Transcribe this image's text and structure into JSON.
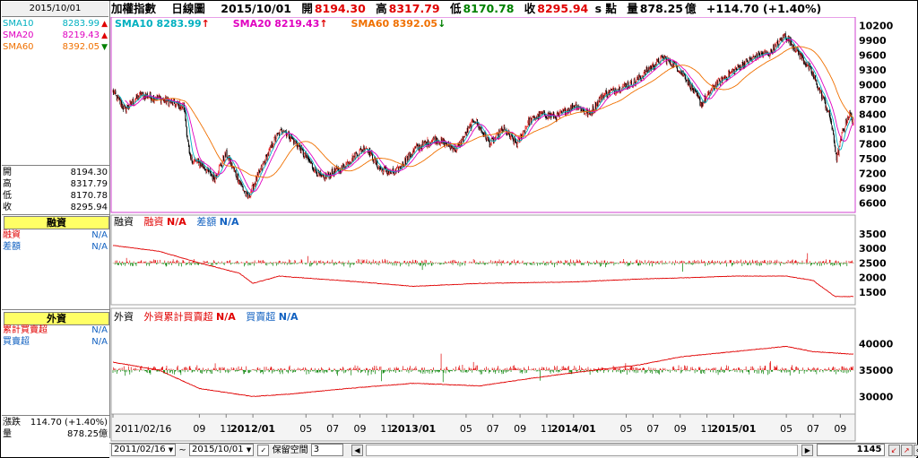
{
  "window": {
    "date": "2015/10/01"
  },
  "header": {
    "title": "加權指數",
    "period": "日線圖",
    "date": "2015/10/01",
    "open_label": "開",
    "open": "8194.30",
    "high_label": "高",
    "high": "8317.79",
    "low_label": "低",
    "low": "8170.78",
    "close_label": "收",
    "close": "8295.94",
    "unit": "s 點",
    "volume_label": "量",
    "volume": "878.25",
    "volume_unit": "億",
    "change": "+114.70 (+1.40%)"
  },
  "left_panel": {
    "sma": [
      {
        "label": "SMA10",
        "value": "8283.99",
        "dir": "up",
        "color": "#00b0c0"
      },
      {
        "label": "SMA20",
        "value": "8219.43",
        "dir": "up",
        "color": "#e000c0"
      },
      {
        "label": "SMA60",
        "value": "8392.05",
        "dir": "down",
        "color": "#f07000"
      }
    ],
    "ohlc": [
      {
        "label": "開",
        "value": "8194.30"
      },
      {
        "label": "高",
        "value": "8317.79"
      },
      {
        "label": "低",
        "value": "8170.78"
      },
      {
        "label": "收",
        "value": "8295.94"
      }
    ],
    "margin_title": "融資",
    "margin_rows": [
      {
        "label": "融資",
        "value": "N/A",
        "color": "#e00000"
      },
      {
        "label": "差額",
        "value": "N/A",
        "color": "#1060c0"
      }
    ],
    "foreign_title": "外資",
    "foreign_rows": [
      {
        "label": "累計買賣超",
        "value": "N/A",
        "color": "#e00000"
      },
      {
        "label": "買賣超",
        "value": "N/A",
        "color": "#1060c0"
      }
    ],
    "footer": [
      {
        "label": "漲跌",
        "value": "114.70 (+1.40%)"
      },
      {
        "label": "量",
        "value": "878.25億"
      }
    ]
  },
  "main_legend": [
    {
      "name": "SMA10",
      "value": "8283.99",
      "arrow": "↑",
      "color": "#00b0c0"
    },
    {
      "name": "SMA20",
      "value": "8219.43",
      "arrow": "↑",
      "color": "#e000c0"
    },
    {
      "name": "SMA60",
      "value": "8392.05",
      "arrow": "↓",
      "color": "#f07000"
    }
  ],
  "margin_legend": {
    "title": "融資",
    "a_label": "融資",
    "a_value": "N/A",
    "b_label": "差額",
    "b_value": "N/A"
  },
  "foreign_legend": {
    "title": "外資",
    "a_label": "外資累計買賣超",
    "a_value": "N/A",
    "b_label": "買賣超",
    "b_value": "N/A"
  },
  "bottom": {
    "start_date": "2011/02/16",
    "range_sep": "~",
    "end_date": "2015/10/01",
    "reserve_label": "保留空間",
    "reserve_value": "3",
    "count": "1145"
  },
  "chart_data": [
    {
      "type": "candlestick",
      "title": "加權指數 日線圖",
      "y_ticks": [
        6600,
        6900,
        7200,
        7500,
        7800,
        8100,
        8400,
        8700,
        9000,
        9300,
        9600,
        9900,
        10200
      ],
      "ylim": [
        6450,
        10300
      ],
      "x_start": "2011/02/16",
      "x_end": "2015/10/01",
      "x_labels": [
        "2011/02/16",
        "09",
        "11",
        "2012/01",
        "05",
        "07",
        "09",
        "11",
        "2013/01",
        "05",
        "07",
        "09",
        "11",
        "2014/01",
        "05",
        "07",
        "09",
        "11",
        "2015/01",
        "05",
        "07",
        "09"
      ],
      "x_label_dates": [
        "2011/02/16",
        "2011/09",
        "2011/11",
        "2012/01",
        "2012/05",
        "2012/07",
        "2012/09",
        "2012/11",
        "2013/01",
        "2013/05",
        "2013/07",
        "2013/09",
        "2013/11",
        "2014/01",
        "2014/05",
        "2014/07",
        "2014/09",
        "2014/11",
        "2015/01",
        "2015/05",
        "2015/07",
        "2015/09"
      ],
      "close_keypoints": [
        [
          "2011/02/16",
          8850
        ],
        [
          "2011/03/15",
          8500
        ],
        [
          "2011/04/20",
          8800
        ],
        [
          "2011/06/10",
          8700
        ],
        [
          "2011/07/28",
          8550
        ],
        [
          "2011/08/10",
          7500
        ],
        [
          "2011/09/05",
          7400
        ],
        [
          "2011/10/05",
          7100
        ],
        [
          "2011/11/01",
          7600
        ],
        [
          "2011/12/20",
          6700
        ],
        [
          "2012/01/10",
          7100
        ],
        [
          "2012/02/20",
          7900
        ],
        [
          "2012/03/10",
          8100
        ],
        [
          "2012/04/10",
          7800
        ],
        [
          "2012/05/20",
          7300
        ],
        [
          "2012/06/05",
          7100
        ],
        [
          "2012/07/20",
          7300
        ],
        [
          "2012/08/25",
          7600
        ],
        [
          "2012/09/15",
          7750
        ],
        [
          "2012/10/15",
          7300
        ],
        [
          "2012/11/20",
          7200
        ],
        [
          "2013/01/05",
          7700
        ],
        [
          "2013/02/20",
          7900
        ],
        [
          "2013/04/10",
          7700
        ],
        [
          "2013/05/20",
          8300
        ],
        [
          "2013/06/25",
          7800
        ],
        [
          "2013/07/25",
          8100
        ],
        [
          "2013/08/25",
          7800
        ],
        [
          "2013/09/20",
          8250
        ],
        [
          "2013/10/20",
          8400
        ],
        [
          "2013/11/25",
          8350
        ],
        [
          "2014/01/05",
          8600
        ],
        [
          "2014/02/05",
          8400
        ],
        [
          "2014/03/10",
          8800
        ],
        [
          "2014/04/20",
          8950
        ],
        [
          "2014/05/20",
          9050
        ],
        [
          "2014/06/20",
          9300
        ],
        [
          "2014/07/25",
          9550
        ],
        [
          "2014/08/20",
          9400
        ],
        [
          "2014/09/10",
          9200
        ],
        [
          "2014/10/20",
          8600
        ],
        [
          "2014/11/20",
          9000
        ],
        [
          "2014/12/20",
          9200
        ],
        [
          "2015/01/20",
          9400
        ],
        [
          "2015/02/25",
          9600
        ],
        [
          "2015/03/25",
          9650
        ],
        [
          "2015/04/28",
          10000
        ],
        [
          "2015/05/25",
          9700
        ],
        [
          "2015/06/25",
          9300
        ],
        [
          "2015/07/25",
          8700
        ],
        [
          "2015/08/10",
          8300
        ],
        [
          "2015/08/24",
          7500
        ],
        [
          "2015/09/05",
          8000
        ],
        [
          "2015/09/20",
          8400
        ],
        [
          "2015/10/01",
          8295.94
        ]
      ],
      "series": [
        {
          "name": "SMA10",
          "period": 10
        },
        {
          "name": "SMA20",
          "period": 20
        },
        {
          "name": "SMA60",
          "period": 60
        }
      ]
    },
    {
      "type": "bar+line",
      "panel": "融資",
      "y_ticks": [
        1500,
        2000,
        2500,
        3000,
        3500
      ],
      "ylim": [
        1100,
        3800
      ],
      "baseline": 2500,
      "line_keypoints": [
        [
          "2011/02/16",
          3100
        ],
        [
          "2011/06/01",
          2900
        ],
        [
          "2011/09/01",
          2500
        ],
        [
          "2011/12/01",
          2150
        ],
        [
          "2012/01/01",
          1800
        ],
        [
          "2012/03/01",
          2050
        ],
        [
          "2012/06/01",
          1950
        ],
        [
          "2012/09/01",
          1850
        ],
        [
          "2013/01/01",
          1700
        ],
        [
          "2013/06/01",
          1800
        ],
        [
          "2014/01/01",
          1850
        ],
        [
          "2014/06/01",
          1950
        ],
        [
          "2014/10/01",
          2000
        ],
        [
          "2015/01/01",
          2050
        ],
        [
          "2015/05/01",
          2050
        ],
        [
          "2015/07/01",
          1900
        ],
        [
          "2015/08/20",
          1350
        ],
        [
          "2015/10/01",
          1350
        ]
      ],
      "bar_amplitude": 200
    },
    {
      "type": "bar+line",
      "panel": "外資",
      "y_ticks": [
        30000,
        35000,
        40000
      ],
      "ylim": [
        27000,
        44500
      ],
      "baseline": 35000,
      "line_keypoints": [
        [
          "2011/02/16",
          36500
        ],
        [
          "2011/06/01",
          35000
        ],
        [
          "2011/09/01",
          31500
        ],
        [
          "2012/01/01",
          30000
        ],
        [
          "2012/04/01",
          30500
        ],
        [
          "2012/08/01",
          31500
        ],
        [
          "2013/01/01",
          32500
        ],
        [
          "2013/06/01",
          32000
        ],
        [
          "2013/10/01",
          33500
        ],
        [
          "2014/01/01",
          34500
        ],
        [
          "2014/06/01",
          36000
        ],
        [
          "2014/09/01",
          37500
        ],
        [
          "2015/01/01",
          38500
        ],
        [
          "2015/05/01",
          39500
        ],
        [
          "2015/07/01",
          38500
        ],
        [
          "2015/10/01",
          38000
        ]
      ],
      "bar_amplitude": 1400
    }
  ]
}
